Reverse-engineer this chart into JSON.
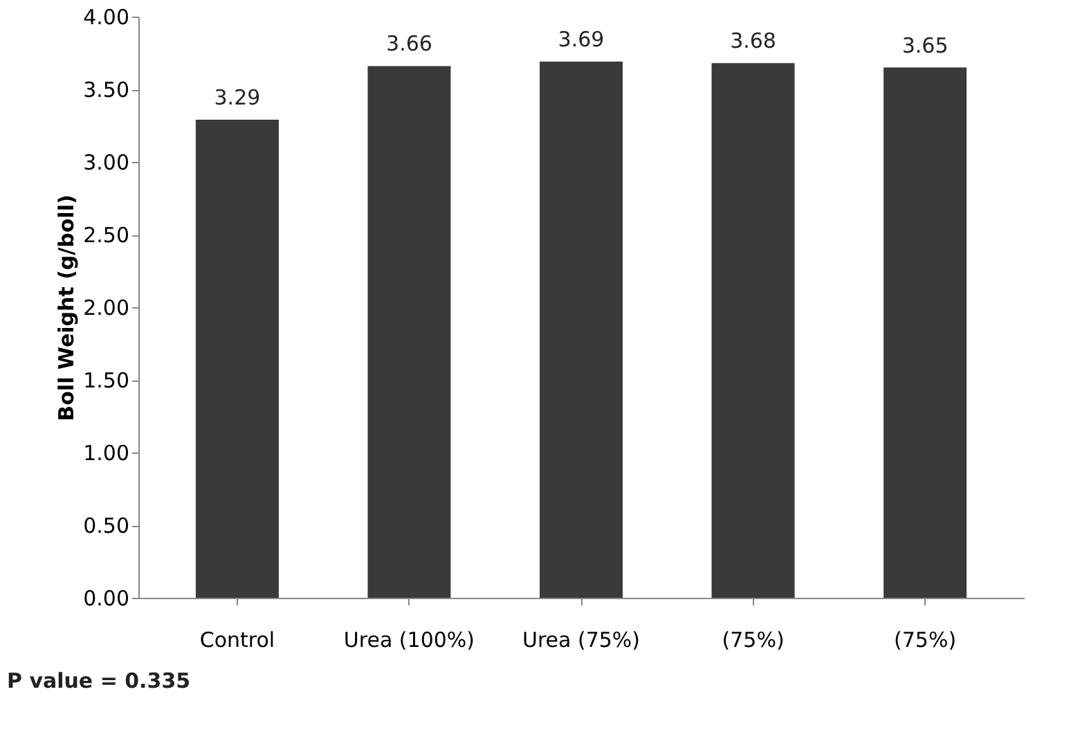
{
  "chart_data": {
    "type": "bar",
    "ylabel": "Boll Weight (g/boll)",
    "categories": [
      "Control",
      "Urea (100%)",
      "Urea (75%)",
      "(75%)",
      "(75%)"
    ],
    "values": [
      3.29,
      3.66,
      3.69,
      3.68,
      3.65
    ],
    "color": "#3a3a3a",
    "ylim": [
      0,
      4
    ],
    "yticks": [
      {
        "value": 0,
        "label": "0.00"
      },
      {
        "value": 0.5,
        "label": "0.50"
      },
      {
        "value": 1,
        "label": "1.00"
      },
      {
        "value": 1.5,
        "label": "1.50"
      },
      {
        "value": 2,
        "label": "2.00"
      },
      {
        "value": 2.5,
        "label": "2.50"
      },
      {
        "value": 3,
        "label": "3.00"
      },
      {
        "value": 3.5,
        "label": "3.50"
      },
      {
        "value": 4,
        "label": "4.00"
      }
    ],
    "data_labels": true,
    "grid": false,
    "annotations": [
      "P value = 0.335"
    ]
  }
}
